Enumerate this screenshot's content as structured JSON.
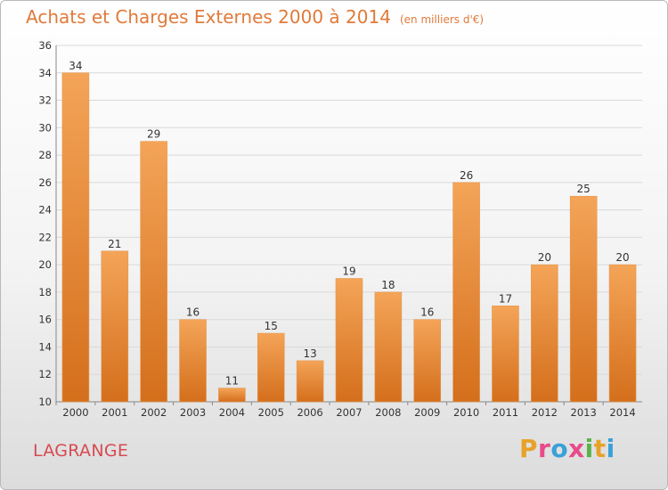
{
  "header": {
    "title": "Achats et Charges Externes 2000 à 2014",
    "subtitle": "(en milliers d'€)"
  },
  "footer": {
    "commune": "LAGRANGE",
    "logo_text": "Proxiti",
    "logo_colors": [
      "#e8a22a",
      "#e84a8a",
      "#3aa0d8",
      "#e84a8a",
      "#5ab24a",
      "#e8a22a",
      "#3aa0d8"
    ]
  },
  "colors": {
    "bar_top": "#f4a458",
    "bar_bottom": "#d46f1c",
    "grid": "#d9d9d9",
    "title": "#e07a3a",
    "commune": "#d64a52"
  },
  "chart_data": {
    "type": "bar",
    "title": "Achats et Charges Externes 2000 à 2014",
    "subtitle": "(en milliers d'€)",
    "categories": [
      "2000",
      "2001",
      "2002",
      "2003",
      "2004",
      "2005",
      "2006",
      "2007",
      "2008",
      "2009",
      "2010",
      "2011",
      "2012",
      "2013",
      "2014"
    ],
    "values": [
      34,
      21,
      29,
      16,
      11,
      15,
      13,
      19,
      18,
      16,
      26,
      17,
      20,
      25,
      20
    ],
    "ylim": [
      10,
      36
    ],
    "yticks": [
      10,
      12,
      14,
      16,
      18,
      20,
      22,
      24,
      26,
      28,
      30,
      32,
      34,
      36
    ],
    "grid": true,
    "legend": "none"
  }
}
